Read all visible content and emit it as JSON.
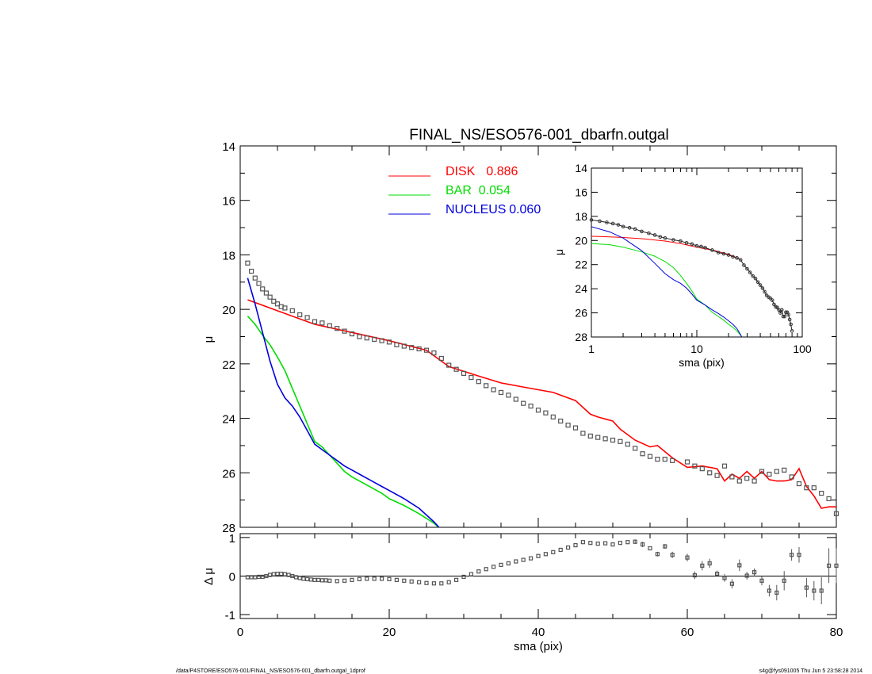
{
  "title": "FINAL_NS/ESO576-001_dbarfn.outgal",
  "footer_left": "/data/P4STORE/ESO576-001/FINAL_NS/ESO576-001_dbarfn.outgal_1dprof",
  "footer_right": "s4g@fys091005  Thu Jun  5 23:58:28 2014",
  "colors": {
    "disk": "#ff0000",
    "bar": "#00dd00",
    "nucleus": "#0000dd",
    "data": "#555555"
  },
  "chart_data": [
    {
      "id": "main",
      "type": "line",
      "title": "FINAL_NS/ESO576-001_dbarfn.outgal",
      "xlabel": "",
      "ylabel": "μ",
      "xlim": [
        0,
        80
      ],
      "ylim": [
        28,
        14
      ],
      "y_ticks": [
        "14",
        "16",
        "18",
        "20",
        "22",
        "24",
        "26",
        "28"
      ],
      "legend": [
        {
          "name": "DISK",
          "value": "0.886",
          "color": "#ff0000"
        },
        {
          "name": "BAR",
          "value": "0.054",
          "color": "#00dd00"
        },
        {
          "name": "NUCLEUS",
          "value": "0.060",
          "color": "#0000dd"
        }
      ],
      "legend_position": "top-center",
      "series": [
        {
          "name": "DISK",
          "x": [
            1,
            5,
            10,
            15,
            20,
            25,
            28,
            32,
            35,
            38,
            42,
            45,
            47,
            48,
            50,
            51,
            53,
            55,
            56,
            58,
            60,
            62,
            64,
            65,
            66,
            67,
            68,
            69,
            70,
            71,
            72,
            73,
            74,
            75,
            76,
            77,
            78,
            79,
            80
          ],
          "y": [
            19.65,
            20.05,
            20.55,
            20.85,
            21.15,
            21.5,
            22.1,
            22.45,
            22.7,
            22.85,
            23.05,
            23.35,
            23.85,
            23.95,
            24.1,
            24.4,
            24.8,
            25.05,
            25,
            25.45,
            25.8,
            25.75,
            25.85,
            26.3,
            26.05,
            26.2,
            25.95,
            26.2,
            25.95,
            26.25,
            26.3,
            26.3,
            26.25,
            25.85,
            26.5,
            26.85,
            27.3,
            27.25,
            27.25
          ]
        },
        {
          "name": "BAR",
          "x": [
            1,
            2,
            3,
            4,
            5,
            6,
            7,
            8,
            9,
            10,
            11,
            12,
            13,
            14,
            15,
            16,
            17,
            18,
            19,
            20,
            22,
            24,
            26,
            27
          ],
          "y": [
            20.25,
            20.55,
            20.95,
            21.3,
            21.75,
            22.25,
            22.9,
            23.55,
            24.2,
            24.85,
            25.05,
            25.35,
            25.65,
            25.95,
            26.15,
            26.3,
            26.45,
            26.6,
            26.75,
            26.95,
            27.2,
            27.5,
            27.85,
            28.1
          ]
        },
        {
          "name": "NUCLEUS",
          "x": [
            1,
            2,
            3,
            4,
            5,
            6,
            7,
            8,
            9,
            10,
            11,
            12,
            13,
            14,
            15,
            16,
            17,
            18,
            19,
            20,
            22,
            24,
            26,
            27
          ],
          "y": [
            18.85,
            19.8,
            20.85,
            21.9,
            22.75,
            23.25,
            23.55,
            23.95,
            24.45,
            24.95,
            25.15,
            25.35,
            25.55,
            25.75,
            25.9,
            26.05,
            26.2,
            26.35,
            26.5,
            26.65,
            26.95,
            27.3,
            27.8,
            28.1
          ]
        }
      ],
      "points": {
        "name": "data",
        "x": [
          1,
          1.5,
          2,
          2.5,
          3,
          3.5,
          4,
          4.5,
          5,
          5.5,
          6,
          7,
          8,
          9,
          10,
          11,
          12,
          13,
          14,
          15,
          16,
          17,
          18,
          19,
          20,
          21,
          22,
          23,
          24,
          25,
          26,
          27,
          28,
          29,
          30,
          31,
          32,
          33,
          34,
          35,
          36,
          37,
          38,
          39,
          40,
          41,
          42,
          43,
          44,
          45,
          46,
          47,
          48,
          49,
          50,
          51,
          52,
          53,
          54,
          55,
          56,
          57,
          58,
          60,
          61,
          62,
          63,
          64,
          65,
          66,
          67,
          68,
          69,
          70,
          71,
          72,
          73,
          74,
          75,
          76,
          77,
          78,
          79,
          80
        ],
        "y": [
          18.3,
          18.6,
          18.85,
          19.05,
          19.25,
          19.4,
          19.55,
          19.7,
          19.8,
          19.9,
          19.95,
          20.05,
          20.2,
          20.3,
          20.45,
          20.5,
          20.6,
          20.7,
          20.8,
          20.9,
          21,
          21.05,
          21.1,
          21.15,
          21.2,
          21.3,
          21.35,
          21.4,
          21.45,
          21.5,
          21.6,
          21.8,
          22.05,
          22.2,
          22.35,
          22.5,
          22.65,
          22.8,
          22.95,
          23.05,
          23.15,
          23.3,
          23.45,
          23.55,
          23.7,
          23.8,
          23.95,
          24.1,
          24.25,
          24.35,
          24.55,
          24.65,
          24.7,
          24.75,
          24.8,
          24.85,
          24.95,
          25.1,
          25.3,
          25.4,
          25.5,
          25.5,
          25.55,
          25.6,
          25.75,
          25.85,
          26,
          26.1,
          25.75,
          26.15,
          26.3,
          26.2,
          26.3,
          25.95,
          26.05,
          25.95,
          25.9,
          26.15,
          26.4,
          26.55,
          26.55,
          26.75,
          26.95,
          27.5
        ]
      }
    },
    {
      "id": "inset",
      "type": "line",
      "xlabel": "sma (pix)",
      "ylabel": "μ",
      "xscale": "log",
      "xlim": [
        1,
        100
      ],
      "ylim": [
        28,
        14
      ],
      "x_ticks": [
        "1",
        "10",
        "100"
      ],
      "y_ticks": [
        "14",
        "16",
        "18",
        "20",
        "22",
        "24",
        "26",
        "28"
      ],
      "series": [
        {
          "name": "DISK",
          "x": [
            1,
            1.5,
            2,
            3,
            5,
            7,
            10,
            15,
            20,
            25
          ],
          "y": [
            19.65,
            19.7,
            19.75,
            19.85,
            20.05,
            20.25,
            20.55,
            20.85,
            21.15,
            21.5
          ]
        },
        {
          "name": "BAR",
          "x": [
            1,
            1.5,
            2,
            3,
            4,
            5,
            6,
            7,
            8,
            9,
            10,
            12,
            14,
            16,
            18,
            20,
            22,
            24,
            26,
            27
          ],
          "y": [
            20.25,
            20.35,
            20.55,
            20.95,
            21.3,
            21.75,
            22.25,
            22.9,
            23.55,
            24.2,
            24.85,
            25.35,
            25.95,
            26.3,
            26.6,
            26.95,
            27.2,
            27.5,
            27.85,
            28.1
          ]
        },
        {
          "name": "NUCLEUS",
          "x": [
            1,
            1.5,
            2,
            3,
            4,
            5,
            6,
            7,
            8,
            9,
            10,
            12,
            14,
            16,
            18,
            20,
            22,
            24,
            26,
            27
          ],
          "y": [
            18.85,
            19.3,
            19.8,
            20.85,
            21.9,
            22.75,
            23.25,
            23.55,
            23.95,
            24.45,
            24.95,
            25.35,
            25.75,
            26.05,
            26.35,
            26.65,
            26.95,
            27.3,
            27.8,
            28.1
          ]
        }
      ],
      "points": {
        "name": "data",
        "x": [
          1,
          1.2,
          1.4,
          1.6,
          1.8,
          2,
          2.3,
          2.6,
          3,
          3.5,
          4,
          4.5,
          5,
          6,
          7,
          8,
          9,
          10,
          11,
          12,
          14,
          16,
          18,
          20,
          22,
          24,
          26,
          28,
          30,
          32,
          34,
          36,
          38,
          40,
          42,
          44,
          46,
          48,
          50,
          52,
          54,
          56,
          58,
          60,
          62,
          64,
          66,
          68,
          70,
          72,
          74,
          76,
          78,
          80
        ],
        "y": [
          18.3,
          18.4,
          18.5,
          18.6,
          18.7,
          18.85,
          18.95,
          19.05,
          19.25,
          19.4,
          19.55,
          19.7,
          19.8,
          19.95,
          20.05,
          20.2,
          20.3,
          20.45,
          20.5,
          20.6,
          20.8,
          21,
          21.1,
          21.2,
          21.35,
          21.45,
          21.6,
          22.05,
          22.35,
          22.65,
          22.95,
          23.15,
          23.45,
          23.7,
          23.95,
          24.25,
          24.55,
          24.7,
          24.8,
          24.95,
          25.3,
          25.5,
          25.55,
          25.75,
          26,
          25.75,
          26.3,
          26.3,
          25.95,
          25.95,
          26.15,
          26.55,
          26.95,
          27.5
        ]
      }
    },
    {
      "id": "residual",
      "type": "scatter",
      "xlabel": "sma (pix)",
      "ylabel": "Δ μ",
      "xlim": [
        0,
        80
      ],
      "ylim": [
        -1.1,
        1.1
      ],
      "x_ticks": [
        "0",
        "20",
        "40",
        "60",
        "80"
      ],
      "y_ticks": [
        "1",
        "0",
        "-1"
      ],
      "points": {
        "name": "Δ μ",
        "x": [
          1,
          1.5,
          2,
          2.5,
          3,
          3.5,
          4,
          4.5,
          5,
          5.5,
          6,
          6.5,
          7,
          7.5,
          8,
          8.5,
          9,
          9.5,
          10,
          10.5,
          11,
          11.5,
          12,
          13,
          14,
          15,
          16,
          17,
          18,
          19,
          20,
          21,
          22,
          23,
          24,
          25,
          26,
          27,
          28,
          29,
          30,
          31,
          32,
          33,
          34,
          35,
          36,
          37,
          38,
          39,
          40,
          41,
          42,
          43,
          44,
          45,
          46,
          47,
          48,
          49,
          50,
          51,
          52,
          53,
          54,
          55,
          56,
          57,
          58,
          60,
          61,
          62,
          63,
          64,
          65,
          66,
          67,
          68,
          69,
          70,
          71,
          72,
          73,
          74,
          75,
          76,
          77,
          78,
          79,
          80
        ],
        "y": [
          -0.03,
          -0.03,
          -0.03,
          -0.02,
          -0.02,
          0,
          0.03,
          0.05,
          0.06,
          0.06,
          0.05,
          0.03,
          0,
          -0.03,
          -0.05,
          -0.07,
          -0.08,
          -0.09,
          -0.1,
          -0.1,
          -0.11,
          -0.11,
          -0.12,
          -0.13,
          -0.12,
          -0.1,
          -0.08,
          -0.07,
          -0.07,
          -0.07,
          -0.08,
          -0.1,
          -0.12,
          -0.14,
          -0.16,
          -0.18,
          -0.19,
          -0.19,
          -0.16,
          -0.1,
          -0.02,
          0.05,
          0.12,
          0.18,
          0.24,
          0.29,
          0.33,
          0.38,
          0.42,
          0.46,
          0.52,
          0.57,
          0.62,
          0.68,
          0.74,
          0.8,
          0.88,
          0.86,
          0.84,
          0.85,
          0.82,
          0.86,
          0.88,
          0.89,
          0.82,
          0.72,
          0.57,
          0.77,
          0.55,
          0.48,
          0.02,
          0.27,
          0.33,
          0.06,
          -0.05,
          -0.2,
          0.28,
          0.01,
          0.1,
          -0.12,
          -0.38,
          -0.43,
          -0.12,
          0.55,
          0.55,
          -0.3,
          -0.38,
          -0.38,
          0.27,
          0.27
        ],
        "err": [
          0,
          0,
          0,
          0,
          0,
          0,
          0,
          0,
          0,
          0,
          0,
          0,
          0,
          0,
          0,
          0,
          0,
          0,
          0,
          0,
          0,
          0,
          0,
          0,
          0,
          0,
          0,
          0,
          0,
          0,
          0,
          0,
          0,
          0,
          0,
          0,
          0,
          0,
          0,
          0,
          0,
          0,
          0,
          0,
          0,
          0,
          0,
          0,
          0,
          0,
          0,
          0,
          0,
          0,
          0,
          0,
          0,
          0,
          0,
          0,
          0,
          0,
          0,
          0.06,
          0.07,
          0,
          0.06,
          0.06,
          0.08,
          0.1,
          0.1,
          0.12,
          0.12,
          0.08,
          0.1,
          0.12,
          0.15,
          0.1,
          0.1,
          0.12,
          0.15,
          0.2,
          0.25,
          0.15,
          0.2,
          0.25,
          0.25,
          0.35,
          0.45,
          0.45
        ]
      }
    }
  ]
}
